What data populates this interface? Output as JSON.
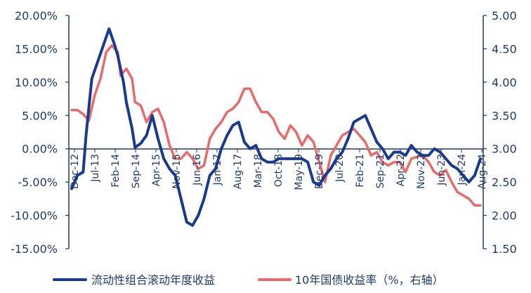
{
  "chart_data": {
    "type": "line",
    "title": "",
    "y_left": {
      "ticks": [
        "20.00%",
        "15.00%",
        "10.00%",
        "5.00%",
        "0.00%",
        "-5.00%",
        "-10.00%",
        "-15.00%"
      ],
      "range": [
        -15,
        20
      ]
    },
    "y_right": {
      "ticks": [
        "5.00",
        "4.50",
        "4.00",
        "3.50",
        "3.00",
        "2.50",
        "2.00",
        "1.50"
      ],
      "range": [
        1.5,
        5.0
      ]
    },
    "x_ticks": [
      "Dec-12",
      "Jul-13",
      "Feb-14",
      "Sep-14",
      "Apr-15",
      "Nov-15",
      "Jun-16",
      "Jan-17",
      "Aug-17",
      "Mar-18",
      "Oct-18",
      "May-19",
      "Dec-19",
      "Jul-20",
      "Feb-21",
      "Sep-21",
      "Apr-22",
      "Nov-22",
      "Jun-23",
      "Jan-24",
      "Aug-24"
    ],
    "x_range": [
      "2012-12",
      "2024-10"
    ],
    "series": [
      {
        "name": "流动性组合滚动年度收益",
        "axis": "left",
        "color": "#1a3a8f",
        "points": [
          [
            "2012-12",
            -6.0
          ],
          [
            "2013-02",
            -4.0
          ],
          [
            "2013-04",
            -3.5
          ],
          [
            "2013-05",
            2.0
          ],
          [
            "2013-07",
            10.5
          ],
          [
            "2013-09",
            13.0
          ],
          [
            "2013-11",
            15.5
          ],
          [
            "2014-01",
            18.0
          ],
          [
            "2014-03",
            15.5
          ],
          [
            "2014-04",
            14.0
          ],
          [
            "2014-06",
            10.0
          ],
          [
            "2014-07",
            7.0
          ],
          [
            "2014-09",
            3.0
          ],
          [
            "2014-10",
            0.2
          ],
          [
            "2014-12",
            0.8
          ],
          [
            "2015-02",
            2.0
          ],
          [
            "2015-04",
            5.0
          ],
          [
            "2015-06",
            1.5
          ],
          [
            "2015-08",
            -1.5
          ],
          [
            "2015-10",
            -3.0
          ],
          [
            "2015-12",
            -4.0
          ],
          [
            "2016-02",
            -7.5
          ],
          [
            "2016-04",
            -11.0
          ],
          [
            "2016-06",
            -11.5
          ],
          [
            "2016-08",
            -10.0
          ],
          [
            "2016-10",
            -7.5
          ],
          [
            "2016-12",
            -4.0
          ],
          [
            "2017-02",
            -3.0
          ],
          [
            "2017-04",
            0.0
          ],
          [
            "2017-06",
            2.0
          ],
          [
            "2017-08",
            3.5
          ],
          [
            "2017-10",
            4.0
          ],
          [
            "2017-12",
            1.0
          ],
          [
            "2018-02",
            0.0
          ],
          [
            "2018-04",
            0.5
          ],
          [
            "2018-06",
            -1.5
          ],
          [
            "2018-08",
            -2.0
          ],
          [
            "2018-10",
            -2.0
          ],
          [
            "2018-12",
            -1.5
          ],
          [
            "2019-02",
            -1.5
          ],
          [
            "2019-04",
            -1.5
          ],
          [
            "2019-06",
            -1.5
          ],
          [
            "2019-08",
            -1.5
          ],
          [
            "2019-10",
            -2.0
          ],
          [
            "2019-12",
            -5.0
          ],
          [
            "2020-02",
            -5.5
          ],
          [
            "2020-04",
            -4.0
          ],
          [
            "2020-06",
            -3.0
          ],
          [
            "2020-08",
            -1.5
          ],
          [
            "2020-10",
            -0.5
          ],
          [
            "2020-12",
            1.5
          ],
          [
            "2021-02",
            4.0
          ],
          [
            "2021-04",
            4.5
          ],
          [
            "2021-06",
            5.0
          ],
          [
            "2021-08",
            3.0
          ],
          [
            "2021-10",
            1.0
          ],
          [
            "2021-12",
            0.0
          ],
          [
            "2022-02",
            -1.5
          ],
          [
            "2022-04",
            -0.5
          ],
          [
            "2022-06",
            -0.5
          ],
          [
            "2022-08",
            -1.0
          ],
          [
            "2022-10",
            0.5
          ],
          [
            "2022-12",
            -0.5
          ],
          [
            "2023-02",
            -1.0
          ],
          [
            "2023-04",
            -1.0
          ],
          [
            "2023-06",
            0.0
          ],
          [
            "2023-08",
            -0.5
          ],
          [
            "2023-10",
            -1.5
          ],
          [
            "2023-12",
            -2.5
          ],
          [
            "2024-02",
            -3.0
          ],
          [
            "2024-04",
            -4.0
          ],
          [
            "2024-06",
            -5.0
          ],
          [
            "2024-08",
            -4.0
          ],
          [
            "2024-10",
            -1.5
          ]
        ]
      },
      {
        "name": "10年国债收益率（%，右轴）",
        "axis": "right",
        "color": "#e86a6a",
        "points": [
          [
            "2012-12",
            3.58
          ],
          [
            "2013-02",
            3.58
          ],
          [
            "2013-04",
            3.52
          ],
          [
            "2013-06",
            3.42
          ],
          [
            "2013-08",
            3.8
          ],
          [
            "2013-10",
            4.05
          ],
          [
            "2013-12",
            4.45
          ],
          [
            "2014-02",
            4.55
          ],
          [
            "2014-04",
            4.45
          ],
          [
            "2014-05",
            4.1
          ],
          [
            "2014-07",
            4.2
          ],
          [
            "2014-09",
            4.05
          ],
          [
            "2014-10",
            3.7
          ],
          [
            "2014-12",
            3.65
          ],
          [
            "2015-02",
            3.4
          ],
          [
            "2015-04",
            3.55
          ],
          [
            "2015-06",
            3.6
          ],
          [
            "2015-08",
            3.4
          ],
          [
            "2015-10",
            3.05
          ],
          [
            "2015-12",
            2.85
          ],
          [
            "2016-02",
            2.85
          ],
          [
            "2016-04",
            2.95
          ],
          [
            "2016-06",
            2.85
          ],
          [
            "2016-08",
            2.7
          ],
          [
            "2016-10",
            2.75
          ],
          [
            "2016-12",
            3.15
          ],
          [
            "2017-02",
            3.3
          ],
          [
            "2017-04",
            3.4
          ],
          [
            "2017-06",
            3.55
          ],
          [
            "2017-08",
            3.6
          ],
          [
            "2017-10",
            3.7
          ],
          [
            "2017-12",
            3.9
          ],
          [
            "2018-02",
            3.9
          ],
          [
            "2018-04",
            3.7
          ],
          [
            "2018-06",
            3.55
          ],
          [
            "2018-08",
            3.55
          ],
          [
            "2018-10",
            3.45
          ],
          [
            "2018-12",
            3.25
          ],
          [
            "2019-02",
            3.15
          ],
          [
            "2019-04",
            3.35
          ],
          [
            "2019-06",
            3.25
          ],
          [
            "2019-08",
            3.05
          ],
          [
            "2019-10",
            3.2
          ],
          [
            "2019-12",
            3.1
          ],
          [
            "2020-02",
            2.8
          ],
          [
            "2020-04",
            2.5
          ],
          [
            "2020-06",
            2.9
          ],
          [
            "2020-08",
            3.05
          ],
          [
            "2020-10",
            3.2
          ],
          [
            "2020-12",
            3.25
          ],
          [
            "2021-02",
            3.3
          ],
          [
            "2021-04",
            3.2
          ],
          [
            "2021-06",
            3.1
          ],
          [
            "2021-08",
            2.9
          ],
          [
            "2021-10",
            2.95
          ],
          [
            "2021-12",
            2.8
          ],
          [
            "2022-02",
            2.75
          ],
          [
            "2022-04",
            2.8
          ],
          [
            "2022-06",
            2.8
          ],
          [
            "2022-08",
            2.65
          ],
          [
            "2022-10",
            2.85
          ],
          [
            "2022-12",
            2.88
          ],
          [
            "2023-02",
            2.9
          ],
          [
            "2023-04",
            2.8
          ],
          [
            "2023-06",
            2.65
          ],
          [
            "2023-08",
            2.6
          ],
          [
            "2023-10",
            2.68
          ],
          [
            "2023-12",
            2.5
          ],
          [
            "2024-02",
            2.35
          ],
          [
            "2024-04",
            2.3
          ],
          [
            "2024-06",
            2.25
          ],
          [
            "2024-08",
            2.15
          ],
          [
            "2024-10",
            2.15
          ]
        ]
      }
    ]
  }
}
